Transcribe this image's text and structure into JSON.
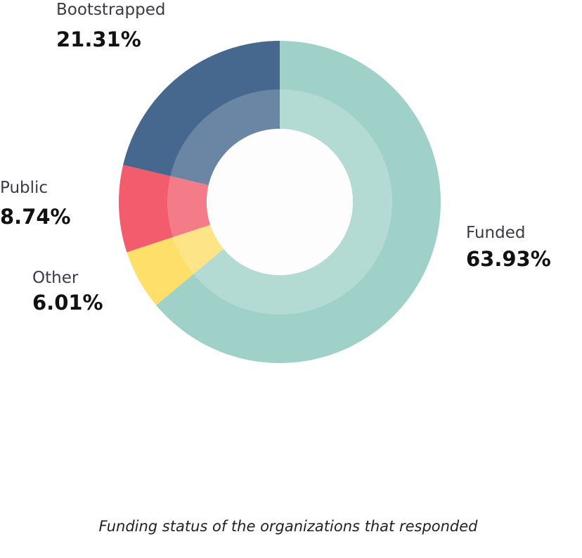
{
  "chart_data": {
    "type": "pie",
    "categories": [
      "Funded",
      "Other",
      "Public",
      "Bootstrapped"
    ],
    "values": [
      63.93,
      6.01,
      8.74,
      21.31
    ],
    "value_labels": [
      "63.93%",
      "6.01%",
      "8.74%",
      "21.31%"
    ],
    "colors": [
      "#a0d1c9",
      "#fddf6a",
      "#f25c6c",
      "#46688e"
    ],
    "caption": "Funding status of the organizations that responded"
  }
}
